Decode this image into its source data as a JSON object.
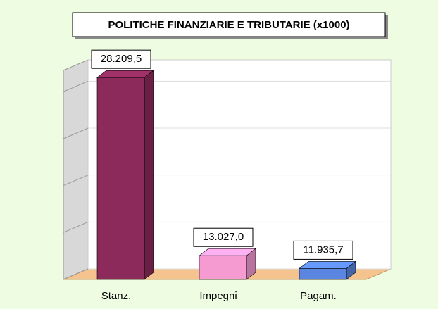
{
  "chart_data": {
    "type": "bar3d",
    "title": "POLITICHE FINANZIARIE E TRIBUTARIE (x1000)",
    "categories": [
      "Stanz.",
      "Impegni",
      "Pagam."
    ],
    "values": [
      28209.5,
      13027.0,
      11935.7
    ],
    "value_labels": [
      "28.209,5",
      "13.027,0",
      "11.935,7"
    ],
    "colors": [
      "#8c2b5b",
      "#f59bd2",
      "#5a86e2"
    ],
    "ylim": [
      11000,
      29000
    ],
    "yticks": [
      11000,
      15000,
      19000,
      23000,
      27000
    ],
    "grid": true
  }
}
